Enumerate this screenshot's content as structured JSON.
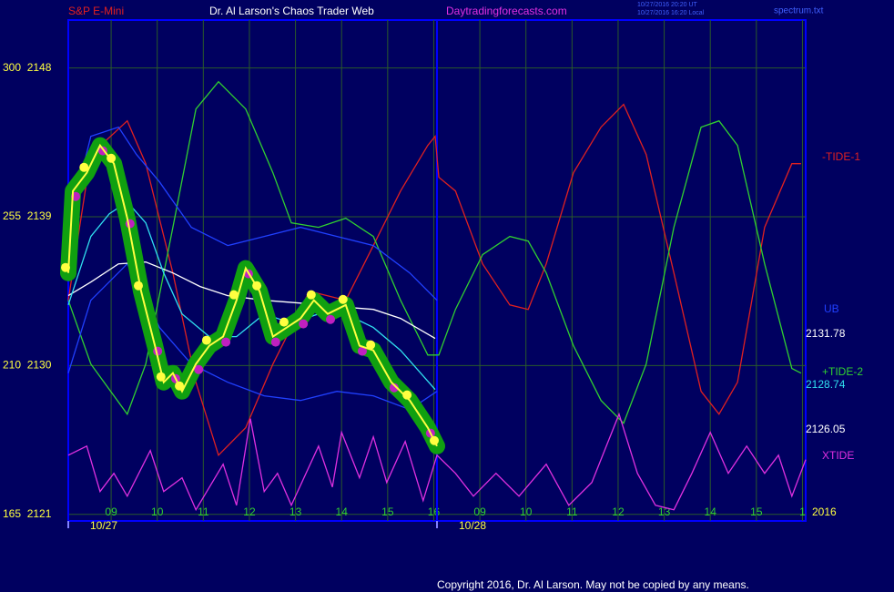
{
  "chart_data": {
    "type": "line",
    "header": {
      "left": "S&P E-Mini",
      "center": "Dr. Al Larson's Chaos Trader Web",
      "site": "Daytradingforecasts.com",
      "stamp1": "10/27/2016 20:20 UT",
      "stamp2": "10/27/2016 16:20 Local",
      "file": "spectrum.txt"
    },
    "copyright": "Copyright 2016, Dr. Al Larson. May not be copied by any means.",
    "xlim": [
      0,
      16
    ],
    "xticks": [
      {
        "value": 0.93,
        "label": "09"
      },
      {
        "value": 1.93,
        "label": "10"
      },
      {
        "value": 2.93,
        "label": "11"
      },
      {
        "value": 3.93,
        "label": "12"
      },
      {
        "value": 4.93,
        "label": "13"
      },
      {
        "value": 5.93,
        "label": "14"
      },
      {
        "value": 6.93,
        "label": "15"
      },
      {
        "value": 7.93,
        "label": "16"
      },
      {
        "value": 8.93,
        "label": "09"
      },
      {
        "value": 9.93,
        "label": "10"
      },
      {
        "value": 10.93,
        "label": "11"
      },
      {
        "value": 11.93,
        "label": "12"
      },
      {
        "value": 12.93,
        "label": "13"
      },
      {
        "value": 13.93,
        "label": "14"
      },
      {
        "value": 14.93,
        "label": "15"
      },
      {
        "value": 15.93,
        "label": "1"
      }
    ],
    "days": [
      {
        "value": 0,
        "label": "10/27"
      },
      {
        "value": 8,
        "label": "10/28"
      }
    ],
    "ylim": [
      2120.6,
      2150.9
    ],
    "yticks": [
      {
        "value": 2148,
        "label": "300  2148"
      },
      {
        "value": 2139,
        "label": "255  2139"
      },
      {
        "value": 2130,
        "label": "210  2130"
      },
      {
        "value": 2121,
        "label": "165  2121"
      }
    ],
    "grid": true,
    "series": [
      {
        "name": "-TIDE-1",
        "color": "#e02020",
        "x": [
          0,
          0.49,
          1.28,
          1.68,
          2.27,
          2.77,
          3.26,
          3.85,
          4.44,
          5.23,
          6.02,
          6.62,
          7.21,
          7.8,
          7.96,
          8.04,
          8.4,
          8.99,
          9.58,
          9.98,
          10.37,
          10.96,
          11.56,
          12.05,
          12.54,
          13.14,
          13.73,
          14.12,
          14.52,
          15.11,
          15.7,
          15.9
        ],
        "values": [
          2133.95,
          2142.77,
          2144.8,
          2142.21,
          2135.6,
          2128.99,
          2124.58,
          2126.24,
          2130.09,
          2134.5,
          2133.95,
          2137.26,
          2140.56,
          2143.32,
          2143.87,
          2141.39,
          2140.56,
          2136.15,
          2133.67,
          2133.4,
          2136.15,
          2141.66,
          2144.42,
          2145.8,
          2142.77,
          2135.6,
          2128.44,
          2127.06,
          2128.99,
          2138.36,
          2142.21,
          2142.21
        ]
      },
      {
        "name": "+TIDE-2",
        "color": "#30d030",
        "x": [
          0,
          0.49,
          1.28,
          1.68,
          2.27,
          2.77,
          3.26,
          3.85,
          4.44,
          4.84,
          5.43,
          6.02,
          6.62,
          7.21,
          7.8,
          8.04,
          8.4,
          8.99,
          9.58,
          9.98,
          10.37,
          10.96,
          11.56,
          12.05,
          12.54,
          13.14,
          13.73,
          14.12,
          14.52,
          15.11,
          15.7,
          15.9
        ],
        "values": [
          2133.95,
          2130.09,
          2127.06,
          2130.09,
          2138.36,
          2145.52,
          2147.17,
          2145.52,
          2141.66,
          2138.63,
          2138.36,
          2138.91,
          2137.81,
          2133.95,
          2130.64,
          2130.64,
          2133.4,
          2136.71,
          2137.81,
          2137.53,
          2135.6,
          2131.2,
          2127.89,
          2126.51,
          2130.09,
          2138.36,
          2144.42,
          2144.8,
          2143.32,
          2136.15,
          2129.82,
          2129.54
        ]
      },
      {
        "name": "XTIDE",
        "color": "#e030e0",
        "x": [
          0,
          0.4,
          0.69,
          0.99,
          1.28,
          1.78,
          2.07,
          2.47,
          2.77,
          3.36,
          3.65,
          3.95,
          4.25,
          4.54,
          4.84,
          5.43,
          5.73,
          5.93,
          6.32,
          6.62,
          6.91,
          7.31,
          7.7,
          8.0,
          8.4,
          8.79,
          9.28,
          9.78,
          10.37,
          10.86,
          11.36,
          11.95,
          12.35,
          12.74,
          13.14,
          13.53,
          13.93,
          14.32,
          14.72,
          15.11,
          15.41,
          15.7,
          16.0
        ],
        "values": [
          2124.58,
          2125.13,
          2122.38,
          2123.48,
          2122.1,
          2124.86,
          2122.38,
          2123.21,
          2121.28,
          2124.03,
          2121.55,
          2126.79,
          2122.38,
          2123.48,
          2121.55,
          2125.13,
          2122.65,
          2125.96,
          2123.21,
          2125.69,
          2122.93,
          2125.41,
          2121.83,
          2124.58,
          2123.48,
          2122.1,
          2123.48,
          2122.1,
          2124.03,
          2121.55,
          2122.93,
          2127.06,
          2123.48,
          2121.55,
          2121.28,
          2123.48,
          2125.96,
          2123.48,
          2125.13,
          2123.48,
          2124.58,
          2122.1,
          2124.31
        ]
      },
      {
        "name": "UB",
        "color": "#2040ff",
        "x": [
          0,
          0.49,
          1.09,
          1.48,
          1.98,
          2.67,
          3.46,
          4.25,
          5.04,
          5.83,
          6.62,
          7.41,
          8.0
        ],
        "values": [
          2138.36,
          2143.87,
          2144.42,
          2142.77,
          2141.11,
          2138.36,
          2137.26,
          2137.81,
          2138.36,
          2137.81,
          2137.26,
          2135.6,
          2133.95
        ]
      },
      {
        "color": "#2040ff",
        "x": [
          0,
          0.49,
          1.28,
          1.98,
          2.67,
          3.46,
          4.25,
          5.04,
          5.83,
          6.62,
          7.41,
          8.0
        ],
        "values": [
          2129.54,
          2133.95,
          2136.15,
          2132.3,
          2130.09,
          2128.99,
          2128.17,
          2127.89,
          2128.44,
          2128.17,
          2127.34,
          2128.44
        ]
      },
      {
        "color": "#ffffff",
        "x": [
          0,
          0.49,
          1.09,
          1.68,
          2.27,
          2.86,
          3.46,
          4.25,
          5.04,
          5.83,
          6.62,
          7.21,
          7.96
        ],
        "values": [
          2134.23,
          2135.05,
          2136.15,
          2136.26,
          2135.6,
          2134.78,
          2134.23,
          2133.95,
          2133.78,
          2133.57,
          2133.4,
          2132.85,
          2131.64
        ]
      },
      {
        "color": "#30e0f0",
        "x": [
          0,
          0.49,
          0.89,
          1.28,
          1.68,
          2.07,
          2.47,
          3.06,
          3.65,
          4.25,
          4.84,
          5.43,
          6.02,
          6.62,
          7.21,
          7.96
        ],
        "values": [
          2133.67,
          2137.81,
          2139.18,
          2139.9,
          2138.63,
          2135.6,
          2133.12,
          2131.75,
          2131.75,
          2133.12,
          2132.57,
          2133.12,
          2133.12,
          2132.3,
          2130.92,
          2128.55
        ]
      },
      {
        "color": "#ffff40",
        "price": true,
        "x": [
          0,
          0.1,
          0.4,
          0.69,
          0.99,
          1.28,
          1.58,
          1.88,
          2.07,
          2.27,
          2.47,
          2.77,
          3.06,
          3.36,
          3.65,
          3.85,
          4.15,
          4.44,
          4.74,
          5.04,
          5.33,
          5.63,
          6.02,
          6.32,
          6.62,
          7.01,
          7.41,
          7.8,
          8.0
        ],
        "values": [
          2135.6,
          2140.56,
          2141.66,
          2143.32,
          2142.21,
          2138.91,
          2134.5,
          2131.2,
          2128.99,
          2129.54,
          2128.44,
          2130.09,
          2131.2,
          2131.75,
          2133.95,
          2135.88,
          2134.5,
          2131.75,
          2132.3,
          2132.85,
          2133.95,
          2133.12,
          2133.67,
          2131.2,
          2130.92,
          2128.99,
          2127.89,
          2126.24,
          2125.13
        ]
      }
    ],
    "labels": [
      {
        "text": "-TIDE-1",
        "color": "#e02020"
      },
      {
        "text": "UB",
        "color": "#2040ff"
      },
      {
        "text": "2131.78",
        "color": "#ffffff"
      },
      {
        "text": "+TIDE-2",
        "color": "#30d030"
      },
      {
        "text": "2128.74",
        "color": "#30e0f0"
      },
      {
        "text": "2126.05",
        "color": "#ffffff"
      },
      {
        "text": "XTIDE",
        "color": "#e030e0"
      },
      {
        "text": "2016",
        "color": "#ffff40"
      }
    ]
  }
}
